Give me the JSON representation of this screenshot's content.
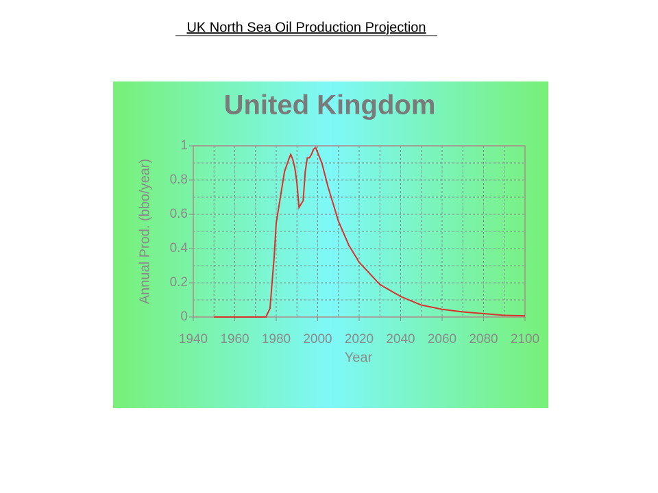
{
  "slide": {
    "title": "UK North Sea Oil Production Projection"
  },
  "chart_data": {
    "type": "line",
    "title": "United Kingdom",
    "x_label": "Year",
    "y_label": "Annual Prod. (bbo/year)",
    "x": [
      1950,
      1975,
      1977,
      1979,
      1980,
      1982,
      1984,
      1986,
      1987,
      1988,
      1989,
      1990,
      1991,
      1992,
      1993,
      1994,
      1995,
      1996,
      1997,
      1998,
      1999,
      2000,
      2002,
      2005,
      2010,
      2015,
      2020,
      2030,
      2040,
      2050,
      2060,
      2070,
      2080,
      2090,
      2100
    ],
    "series": [
      {
        "name": "United Kingdom",
        "color": "#d9302c",
        "values": [
          0,
          0,
          0.05,
          0.35,
          0.55,
          0.7,
          0.85,
          0.92,
          0.95,
          0.92,
          0.87,
          0.78,
          0.64,
          0.66,
          0.68,
          0.85,
          0.93,
          0.93,
          0.95,
          0.98,
          0.99,
          0.96,
          0.9,
          0.76,
          0.56,
          0.42,
          0.32,
          0.19,
          0.12,
          0.07,
          0.045,
          0.03,
          0.02,
          0.01,
          0.007
        ]
      }
    ],
    "xlim": [
      1940,
      2100
    ],
    "xticks": [
      1940,
      1960,
      1980,
      2000,
      2020,
      2040,
      2060,
      2080,
      2100
    ],
    "ylim": [
      0,
      1
    ],
    "yticks": [
      0,
      0.2,
      0.4,
      0.6,
      0.8,
      1
    ],
    "grid": true
  }
}
